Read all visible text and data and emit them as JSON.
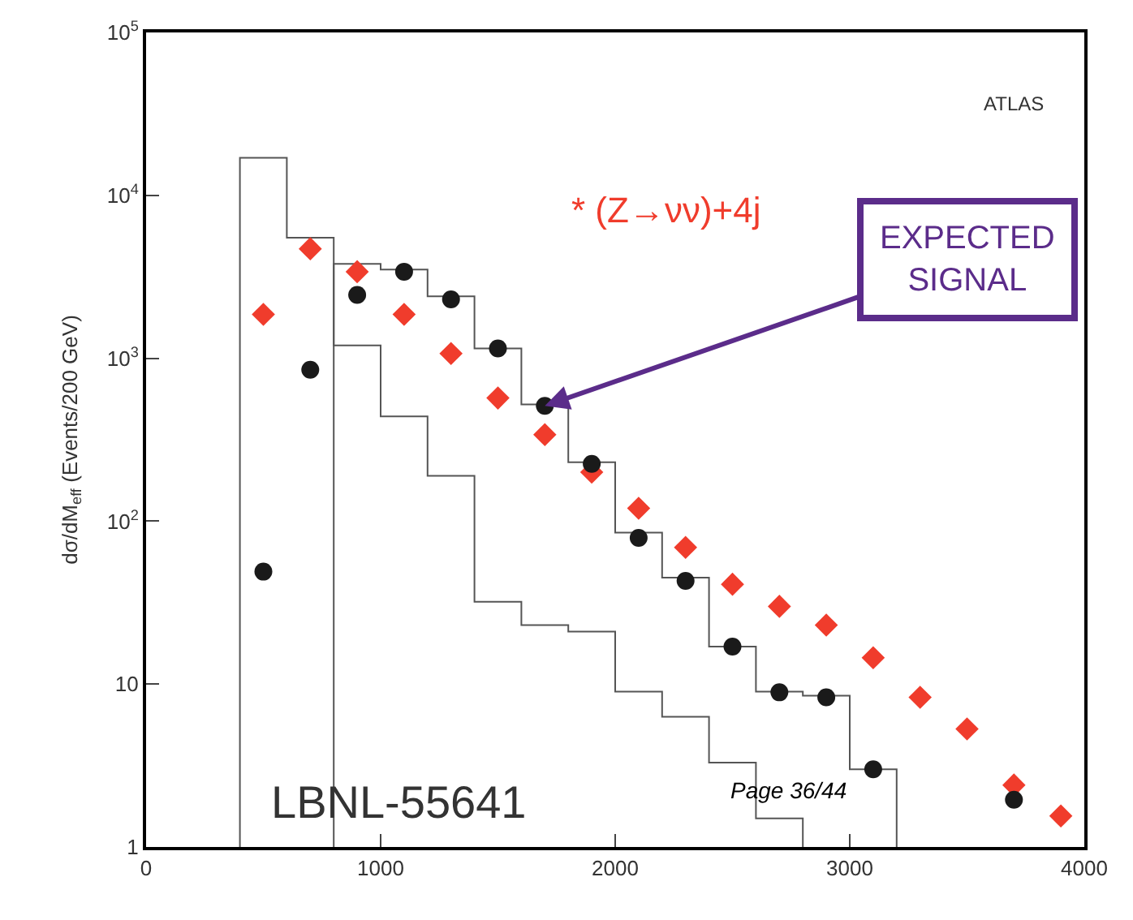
{
  "chart_data": {
    "type": "scatter",
    "ylabel": "dσ/dM$_{eff}$ (Events/200 GeV)",
    "log": "y",
    "xlim": [
      0,
      4000
    ],
    "ylim": [
      1,
      100000
    ],
    "xticks": [
      0,
      1000,
      2000,
      3000,
      4000
    ],
    "yticks": [
      {
        "value": 1,
        "label": "1"
      },
      {
        "value": 10,
        "label": "10"
      },
      {
        "value": 100,
        "label": "10$^{2}$"
      },
      {
        "value": 1000,
        "label": "10$^{3}$"
      },
      {
        "value": 10000,
        "label": "10$^{4}$"
      },
      {
        "value": 100000,
        "label": "10$^{5}$"
      }
    ],
    "series": [
      {
        "type": "histogram",
        "color": "#555555",
        "bins": [
          400,
          600,
          800,
          1000,
          1200,
          1400,
          1600,
          1800,
          2000,
          2200,
          2400,
          2600,
          2800
        ],
        "values": [
          17000,
          5500,
          1200,
          440,
          190,
          32,
          23,
          21,
          9,
          6.3,
          3.3,
          1.5
        ]
      },
      {
        "type": "histogram",
        "color": "#555555",
        "bins": [
          800,
          1000,
          1200,
          1400,
          1600,
          1800,
          2000,
          2200,
          2400,
          2600,
          2800,
          3000,
          3200
        ],
        "values": [
          3800,
          3500,
          2400,
          1150,
          520,
          230,
          85,
          45,
          17,
          9,
          8.5,
          3
        ]
      },
      {
        "color": "#f03c2c",
        "marker": "diamond",
        "x": [
          500,
          700,
          900,
          1100,
          1300,
          1500,
          1700,
          1900,
          2100,
          2300,
          2500,
          2700,
          2900,
          3100,
          3300,
          3500,
          3700,
          3900
        ],
        "values": [
          1860,
          4700,
          3400,
          1860,
          1070,
          570,
          340,
          200,
          120,
          69,
          41,
          30,
          23,
          14.5,
          8.3,
          5.3,
          2.4,
          1.55
        ]
      },
      {
        "color": "#1a1a1a",
        "marker": "circle",
        "x": [
          500,
          700,
          900,
          1100,
          1300,
          1500,
          1700,
          1900,
          2100,
          2300,
          2500,
          2700,
          2900,
          3100,
          3700
        ],
        "values": [
          49,
          850,
          2450,
          3400,
          2300,
          1150,
          510,
          225,
          79,
          43,
          17,
          8.9,
          8.3,
          3.0,
          1.95
        ]
      }
    ],
    "annotations": [
      "ATLAS",
      "* (Z→νν)+4j",
      {
        "text": "EXPECTED SIGNAL",
        "x": 1700,
        "y": 510
      },
      "LBNL-55641",
      "Page 36/44"
    ]
  }
}
